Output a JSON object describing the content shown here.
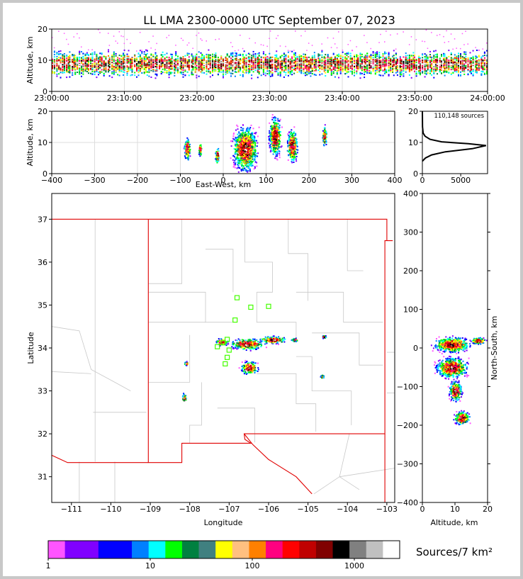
{
  "chart_data": [
    {
      "type": "scatter",
      "panel": "time-height",
      "title": "LL LMA 2300-0000 UTC September 07, 2023",
      "ylabel": "Altitude, km",
      "xlabel": "",
      "ylim": [
        0,
        20
      ],
      "yticks": [
        "0",
        "10",
        "20"
      ],
      "xticks": [
        "23:00:00",
        "23:10:00",
        "23:20:00",
        "23:30:00",
        "23:40:00",
        "23:50:00",
        "24:00:00"
      ],
      "grid": true,
      "altitude_band_km": [
        4,
        13
      ],
      "peak_altitude_km": 9
    },
    {
      "type": "scatter",
      "panel": "east-west vs altitude",
      "xlabel": "East-West, km",
      "ylabel": "Altitude, km",
      "xlim": [
        -400,
        400
      ],
      "ylim": [
        0,
        20
      ],
      "xticks": [
        "−400",
        "−300",
        "−200",
        "−100",
        "0",
        "100",
        "200",
        "300",
        "400"
      ],
      "yticks": [
        "0",
        "10",
        "20"
      ],
      "grid": true,
      "clusters": [
        {
          "x": -85,
          "y": 8,
          "w": 15,
          "h": 8
        },
        {
          "x": -55,
          "y": 8,
          "w": 8,
          "h": 5
        },
        {
          "x": -15,
          "y": 6,
          "w": 10,
          "h": 6
        },
        {
          "x": 50,
          "y": 8,
          "w": 60,
          "h": 16
        },
        {
          "x": 120,
          "y": 12,
          "w": 30,
          "h": 14
        },
        {
          "x": 160,
          "y": 9,
          "w": 25,
          "h": 12
        },
        {
          "x": 235,
          "y": 12,
          "w": 10,
          "h": 8
        }
      ]
    },
    {
      "type": "line",
      "panel": "altitude histogram",
      "annotation": "110,148 sources",
      "xticks": [
        "0",
        "5000"
      ],
      "yticks": [
        "0",
        "10",
        "20"
      ],
      "xlim": [
        0,
        8500
      ],
      "ylim": [
        0,
        20
      ],
      "points": [
        [
          0,
          4
        ],
        [
          400,
          5
        ],
        [
          1200,
          6
        ],
        [
          3000,
          7
        ],
        [
          6500,
          8
        ],
        [
          8300,
          9
        ],
        [
          6000,
          9.6
        ],
        [
          2500,
          10.2
        ],
        [
          1000,
          11
        ],
        [
          350,
          12
        ],
        [
          100,
          13
        ],
        [
          20,
          15
        ],
        [
          0,
          20
        ]
      ]
    },
    {
      "type": "scatter",
      "panel": "plan view",
      "xlabel": "Longitude",
      "ylabel": "Latitude",
      "xlim": [
        -111.5,
        -102.8
      ],
      "ylim": [
        30.4,
        37.6
      ],
      "xticks": [
        "−111",
        "−110",
        "−109",
        "−108",
        "−107",
        "−106",
        "−105",
        "−104",
        "−103"
      ],
      "yticks": [
        "31",
        "32",
        "33",
        "34",
        "35",
        "36",
        "37"
      ],
      "grid": false,
      "stations": [
        {
          "lon": -106.8,
          "lat": 35.17
        },
        {
          "lon": -106.45,
          "lat": 34.95
        },
        {
          "lon": -106.0,
          "lat": 34.97
        },
        {
          "lon": -106.85,
          "lat": 34.65
        },
        {
          "lon": -107.05,
          "lat": 34.2
        },
        {
          "lon": -107.15,
          "lat": 34.12
        },
        {
          "lon": -107.3,
          "lat": 34.03
        },
        {
          "lon": -107.0,
          "lat": 33.95
        },
        {
          "lon": -107.05,
          "lat": 33.78
        },
        {
          "lon": -107.1,
          "lat": 33.63
        }
      ],
      "clusters": [
        {
          "lon": -106.55,
          "lat": 34.1,
          "w": 1.0,
          "h": 0.3
        },
        {
          "lon": -106.5,
          "lat": 33.55,
          "w": 0.5,
          "h": 0.35
        },
        {
          "lon": -105.9,
          "lat": 34.2,
          "w": 0.8,
          "h": 0.2
        },
        {
          "lon": -107.2,
          "lat": 34.15,
          "w": 0.35,
          "h": 0.2
        },
        {
          "lon": -104.6,
          "lat": 34.27,
          "w": 0.12,
          "h": 0.08
        },
        {
          "lon": -108.15,
          "lat": 32.85,
          "w": 0.12,
          "h": 0.25
        },
        {
          "lon": -108.1,
          "lat": 33.65,
          "w": 0.12,
          "h": 0.1
        },
        {
          "lon": -105.35,
          "lat": 34.2,
          "w": 0.2,
          "h": 0.1
        },
        {
          "lon": -104.65,
          "lat": 33.35,
          "w": 0.1,
          "h": 0.1
        }
      ]
    },
    {
      "type": "scatter",
      "panel": "altitude vs north-south",
      "xlabel": "Altitude, km",
      "ylabel": "North-South, km",
      "xlim": [
        0,
        20
      ],
      "ylim": [
        -400,
        400
      ],
      "xticks": [
        "0",
        "10",
        "20"
      ],
      "yticks": [
        "−400",
        "−300",
        "−200",
        "−100",
        "0",
        "100",
        "200",
        "300",
        "400"
      ],
      "clusters": [
        {
          "x": 9,
          "y": 10,
          "w": 14,
          "h": 45
        },
        {
          "x": 9,
          "y": -50,
          "w": 12,
          "h": 60
        },
        {
          "x": 10,
          "y": -110,
          "w": 5,
          "h": 60
        },
        {
          "x": 12,
          "y": -180,
          "w": 6,
          "h": 40
        },
        {
          "x": 17,
          "y": 20,
          "w": 6,
          "h": 20
        }
      ]
    },
    {
      "type": "heatmap",
      "panel": "colorbar",
      "label": "Sources/7 km²",
      "ticks": [
        "1",
        "10",
        "100",
        "1000"
      ],
      "scale": "log",
      "colors": [
        "#ff55ff",
        "#8000ff",
        "#8000ff",
        "#0000ff",
        "#0000ff",
        "#0080ff",
        "#00ffff",
        "#00ff00",
        "#008040",
        "#408080",
        "#ffff00",
        "#ffc080",
        "#ff8000",
        "#ff0080",
        "#ff0000",
        "#c00000",
        "#800000",
        "#000000",
        "#808080",
        "#c0c0c0",
        "#ffffff"
      ]
    }
  ]
}
